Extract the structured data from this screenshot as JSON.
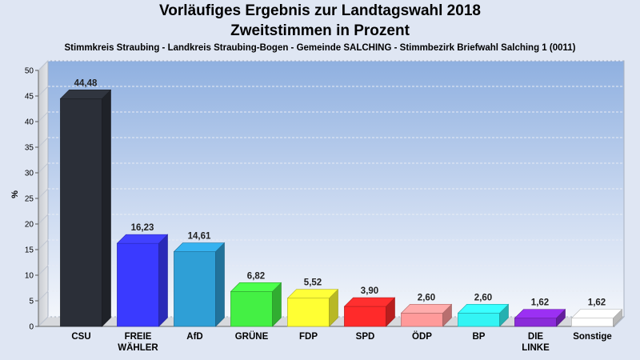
{
  "chart_data": {
    "type": "bar",
    "title": "Vorläufiges Ergebnis zur Landtagswahl 2018",
    "subtitle": "Zweitstimmen in Prozent",
    "caption": "Stimmkreis Straubing - Landkreis Straubing-Bogen - Gemeinde SALCHING - Stimmbezirk Briefwahl Salching 1 (0011)",
    "ylabel": "%",
    "xlabel": "",
    "ylim": [
      0,
      50
    ],
    "yticks": [
      0,
      5,
      10,
      15,
      20,
      25,
      30,
      35,
      40,
      45,
      50
    ],
    "grid": true,
    "categories": [
      [
        "CSU"
      ],
      [
        "FREIE",
        "WÄHLER"
      ],
      [
        "AfD"
      ],
      [
        "GRÜNE"
      ],
      [
        "FDP"
      ],
      [
        "SPD"
      ],
      [
        "ÖDP"
      ],
      [
        "BP"
      ],
      [
        "DIE",
        "LINKE"
      ],
      [
        "Sonstige"
      ]
    ],
    "values": [
      44.48,
      16.23,
      14.61,
      6.82,
      5.52,
      3.9,
      2.6,
      2.6,
      1.62,
      1.62
    ],
    "value_labels": [
      "44,48",
      "16,23",
      "14,61",
      "6,82",
      "5,52",
      "3,90",
      "2,60",
      "2,60",
      "1,62",
      "1,62"
    ],
    "colors": [
      "#2b2f38",
      "#3a3aff",
      "#2f9fd6",
      "#44f044",
      "#ffff33",
      "#ff2a2a",
      "#ff9a9a",
      "#33f4f4",
      "#8a2bd9",
      "#ffffff"
    ]
  }
}
